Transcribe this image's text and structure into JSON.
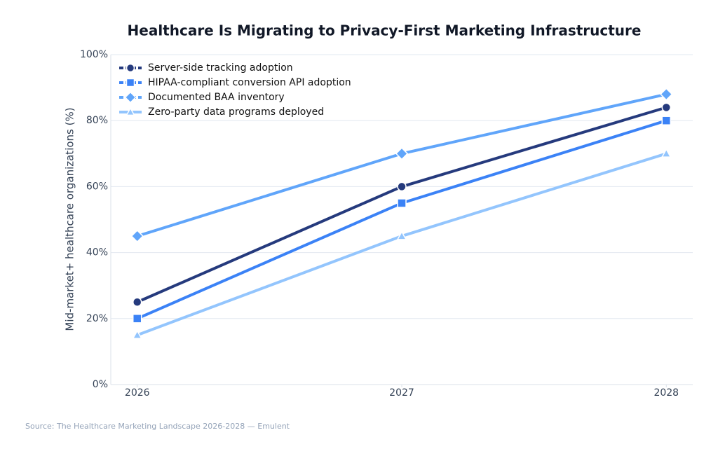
{
  "chart_data": {
    "type": "line",
    "title": "Healthcare Is Migrating to Privacy-First Marketing Infrastructure",
    "y_label": "Mid-market+ healthcare organizations (%)",
    "source": "Source: The Healthcare Marketing Landscape 2026-2028 — Emulent",
    "x": [
      2026,
      2027,
      2028
    ],
    "xlim": [
      2025.9,
      2028.1
    ],
    "xticks": [
      2026,
      2027,
      2028
    ],
    "ylim": [
      0,
      100
    ],
    "yticks": [
      {
        "value": 0,
        "label": "0%"
      },
      {
        "value": 20,
        "label": "20%"
      },
      {
        "value": 40,
        "label": "40%"
      },
      {
        "value": 60,
        "label": "60%"
      },
      {
        "value": 80,
        "label": "80%"
      },
      {
        "value": 100,
        "label": "100%"
      }
    ],
    "grid": true,
    "legend": "upper left",
    "series": [
      {
        "name": "Server-side tracking adoption",
        "color": "#253a7d",
        "marker": "circle",
        "values": [
          25,
          60,
          84
        ]
      },
      {
        "name": "HIPAA-compliant conversion API adoption",
        "color": "#3b82f6",
        "marker": "square",
        "values": [
          20,
          55,
          80
        ]
      },
      {
        "name": "Documented BAA inventory",
        "color": "#60a5fa",
        "marker": "diamond",
        "values": [
          45,
          70,
          88
        ]
      },
      {
        "name": "Zero-party data programs deployed",
        "color": "#93c5fd",
        "marker": "triangle",
        "values": [
          15,
          45,
          70
        ]
      }
    ]
  }
}
